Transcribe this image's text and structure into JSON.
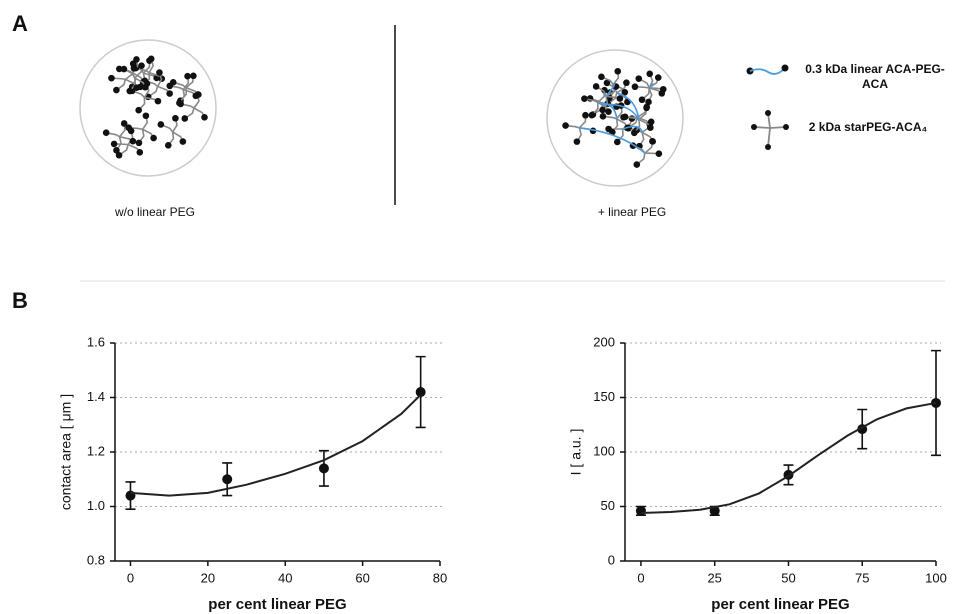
{
  "panels": {
    "a": "A",
    "b": "B"
  },
  "diagram": {
    "left_caption": "w/o linear PEG",
    "right_caption": "+ linear PEG",
    "legend": {
      "linear_line1": "0.3 kDa linear ACA-PEG-",
      "linear_line2": "ACA",
      "star": "2 kDa starPEG-ACA₄"
    }
  },
  "chart_data": [
    {
      "type": "scatter",
      "x_label": "per cent linear PEG",
      "y_label": "contact area [ μm ]",
      "xlim": [
        -4,
        80
      ],
      "xticks": [
        0,
        20,
        40,
        60,
        80
      ],
      "ylim": [
        0.8,
        1.6
      ],
      "yticks": [
        0.8,
        {
          "value": 1,
          "label": "1.0"
        },
        1.2,
        1.4,
        1.6
      ],
      "grid": true,
      "series": [
        {
          "color": "#111111",
          "x": [
            0,
            25,
            50,
            75
          ],
          "values": [
            1.04,
            1.1,
            1.14,
            1.42
          ],
          "errors": [
            0.05,
            0.06,
            0.065,
            0.13
          ]
        },
        {
          "color": "#222222",
          "style": "line",
          "x": [
            0,
            10,
            20,
            30,
            40,
            50,
            60,
            70,
            75
          ],
          "values": [
            1.05,
            1.04,
            1.05,
            1.08,
            1.12,
            1.17,
            1.24,
            1.34,
            1.41
          ]
        }
      ]
    },
    {
      "type": "scatter",
      "x_label": "per cent linear PEG",
      "y_label": "I [ a.u. ]",
      "xlim": [
        -5.4,
        100
      ],
      "xticks": [
        0,
        25,
        50,
        75,
        100
      ],
      "ylim": [
        0,
        200
      ],
      "yticks": [
        0,
        50,
        100,
        150,
        200
      ],
      "grid": true,
      "series": [
        {
          "color": "#111111",
          "x": [
            0,
            25,
            50,
            75,
            100
          ],
          "values": [
            46,
            46,
            79,
            121,
            145
          ],
          "errors": [
            4,
            4,
            9,
            18,
            48
          ]
        },
        {
          "color": "#222222",
          "style": "line",
          "x": [
            0,
            10,
            20,
            30,
            40,
            50,
            60,
            70,
            80,
            90,
            100
          ],
          "values": [
            44,
            45,
            47,
            52,
            62,
            78,
            97,
            115,
            130,
            140,
            145
          ]
        }
      ]
    }
  ]
}
